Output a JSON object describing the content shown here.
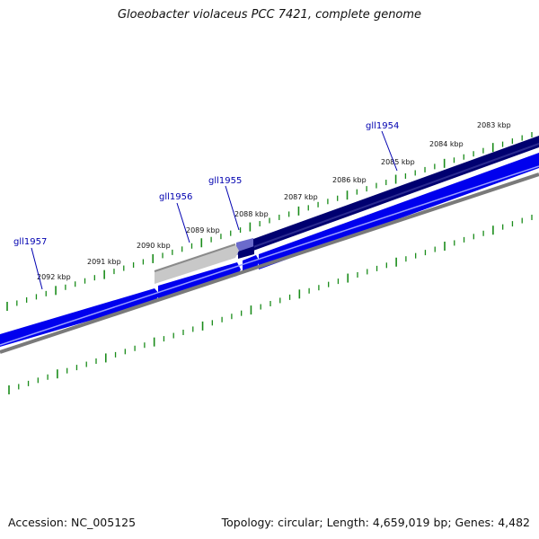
{
  "title": "Gloeobacter violaceus PCC 7421, complete genome",
  "footer": {
    "accession": "Accession: NC_005125",
    "summary": "Topology: circular; Length: 4,659,019 bp; Genes: 4,482"
  },
  "kbp_labels": [
    "2083 kbp",
    "2084 kbp",
    "2085 kbp",
    "2086 kbp",
    "2087 kbp",
    "2088 kbp",
    "2089 kbp",
    "2090 kbp",
    "2091 kbp",
    "2092 kbp"
  ],
  "genes": [
    {
      "name": "gll1954"
    },
    {
      "name": "gll1955"
    },
    {
      "name": "gll1956"
    },
    {
      "name": "gll1957"
    }
  ],
  "colors": {
    "tick": "#1a8c1a",
    "track_dark": "#000070",
    "track_blue": "#0000ee",
    "track_grey": "#7a7a7a",
    "track_light": "#c8c8c8",
    "highlight": "#6b6bcc",
    "label_blue": "#0000b0"
  }
}
